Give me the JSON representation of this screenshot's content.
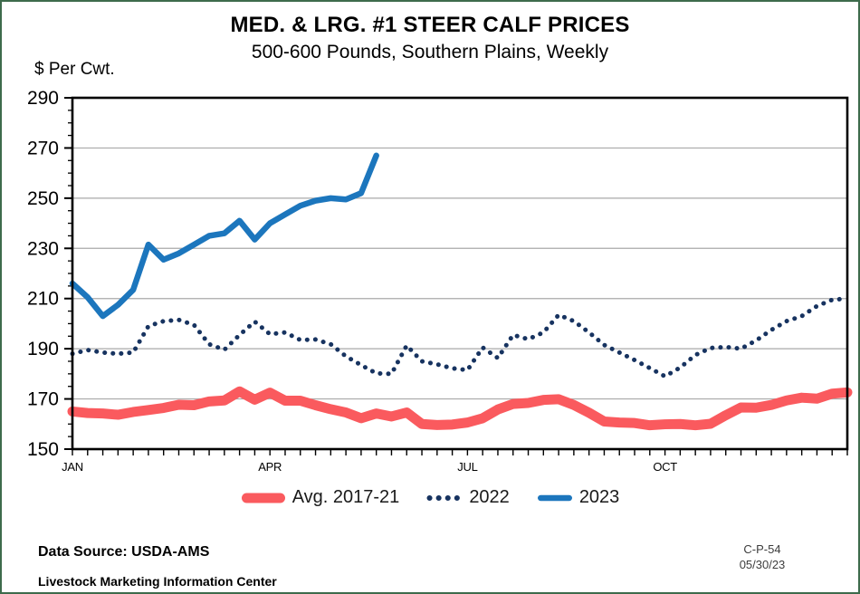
{
  "header": {
    "unit_label": "$ Per Cwt."
  },
  "footer": {
    "source": "Data Source:  USDA-AMS",
    "org": "Livestock Marketing Information Center",
    "code": "C-P-54",
    "date": "05/30/23"
  },
  "colors": {
    "avg_series": "#FA5A5E",
    "series_2022": "#173360",
    "series_2023": "#1C76BD",
    "gridline": "#A9A9A9",
    "axis": "#000000",
    "page_border": "#3E6B4C"
  },
  "chart_data": {
    "type": "line",
    "title": "MED. & LRG. #1 STEER CALF PRICES",
    "subtitle": "500-600 Pounds, Southern Plains, Weekly",
    "ylabel": "$ Per Cwt.",
    "ylim": [
      150,
      290
    ],
    "yticks": [
      150,
      170,
      190,
      210,
      230,
      250,
      270,
      290
    ],
    "ytick_interval": 20,
    "ytick_minor_interval": 5,
    "grid": "horizontal-major",
    "x_unit": "week",
    "weeks": 52,
    "month_ticks": [
      {
        "label": "JAN",
        "week": 1
      },
      {
        "label": "APR",
        "week": 14
      },
      {
        "label": "JUL",
        "week": 27
      },
      {
        "label": "OCT",
        "week": 40
      }
    ],
    "legend_position": "bottom",
    "series": [
      {
        "name": "Avg. 2017-21",
        "style": "solid-thick",
        "color": "#FA5A5E",
        "start_week": 1,
        "values": [
          165,
          164.4,
          164.2,
          163.7,
          164.8,
          165.6,
          166.4,
          167.7,
          167.5,
          169,
          169.4,
          173,
          169.7,
          172.5,
          169.3,
          169.3,
          167.5,
          165.9,
          164.6,
          162.3,
          164.2,
          163,
          164.6,
          160,
          159.6,
          159.8,
          160.6,
          162.3,
          165.8,
          168,
          168.4,
          169.6,
          169.9,
          167.6,
          164.5,
          161,
          160.6,
          160.4,
          159.5,
          159.9,
          160,
          159.5,
          160.1,
          163.5,
          166.6,
          166.5,
          167.6,
          169.4,
          170.5,
          170.1,
          172.1,
          172.6
        ]
      },
      {
        "name": "2022",
        "style": "dotted",
        "color": "#173360",
        "start_week": 1,
        "values": [
          188,
          189.5,
          188.5,
          188,
          188.5,
          199,
          201,
          201.5,
          199.5,
          191.8,
          189.6,
          195.5,
          200.8,
          195.8,
          196.5,
          193.5,
          193.7,
          191.8,
          187,
          183.5,
          180.2,
          180,
          191.3,
          185,
          183.8,
          182.2,
          181.5,
          190.5,
          186.3,
          195.5,
          193.8,
          196.5,
          203.5,
          201,
          196.5,
          191.5,
          188.5,
          185.5,
          182.3,
          179,
          182.5,
          187.5,
          190.3,
          190.7,
          190,
          193.3,
          197.5,
          201,
          203,
          207,
          209.5,
          210
        ]
      },
      {
        "name": "2023",
        "style": "solid",
        "color": "#1C76BD",
        "start_week": 1,
        "values": [
          216,
          210.5,
          203,
          207.5,
          213.5,
          231.5,
          225.5,
          228,
          231.5,
          235,
          236,
          241,
          233.5,
          240,
          243.5,
          247,
          249,
          250,
          249.5,
          252,
          267
        ]
      }
    ]
  }
}
